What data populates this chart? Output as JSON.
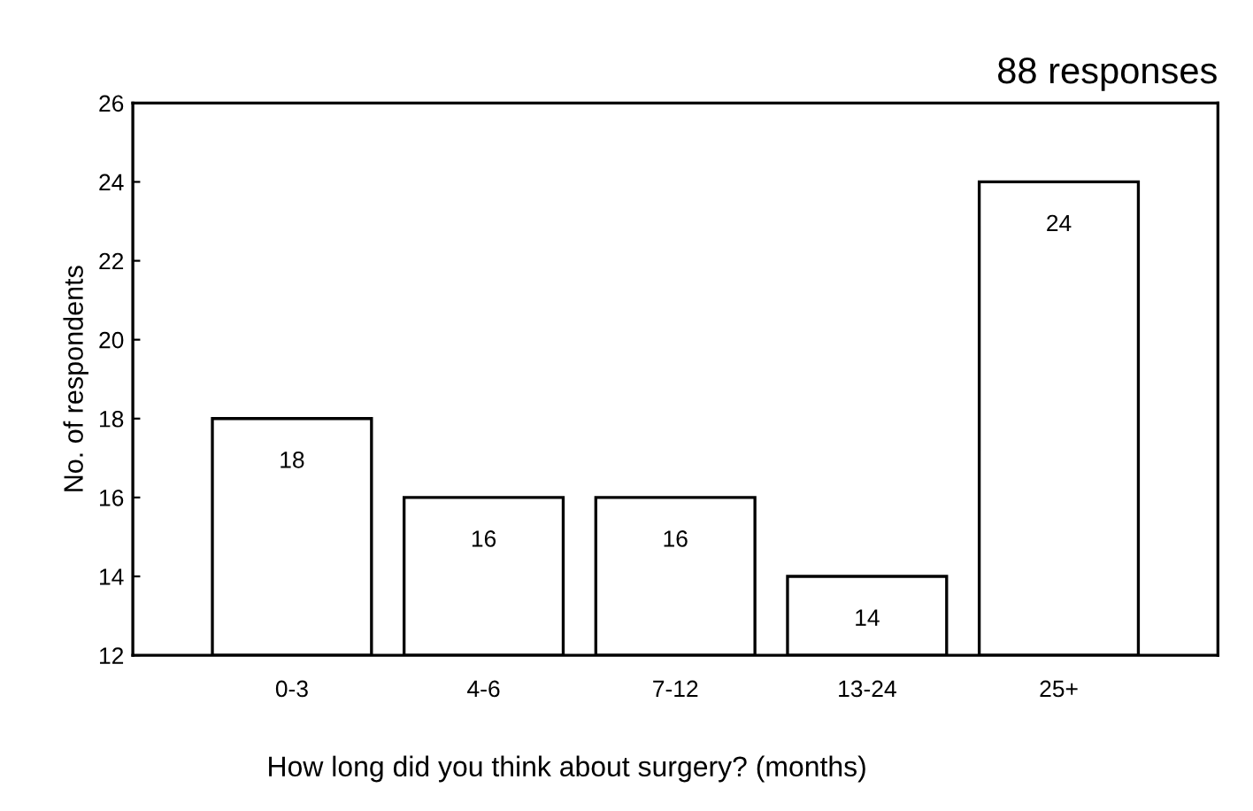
{
  "chart_data": {
    "type": "bar",
    "title": "88 responses",
    "xlabel": "How long did you think about surgery? (months)",
    "ylabel": "No. of respondents",
    "categories": [
      "0-3",
      "4-6",
      "7-12",
      "13-24",
      "25+"
    ],
    "values": [
      18,
      16,
      16,
      14,
      24
    ],
    "color": "#ffffff",
    "ylim": [
      12,
      26
    ],
    "yticks": [
      12,
      14,
      16,
      18,
      20,
      22,
      24,
      26
    ],
    "grid": false,
    "data_labels": true
  }
}
